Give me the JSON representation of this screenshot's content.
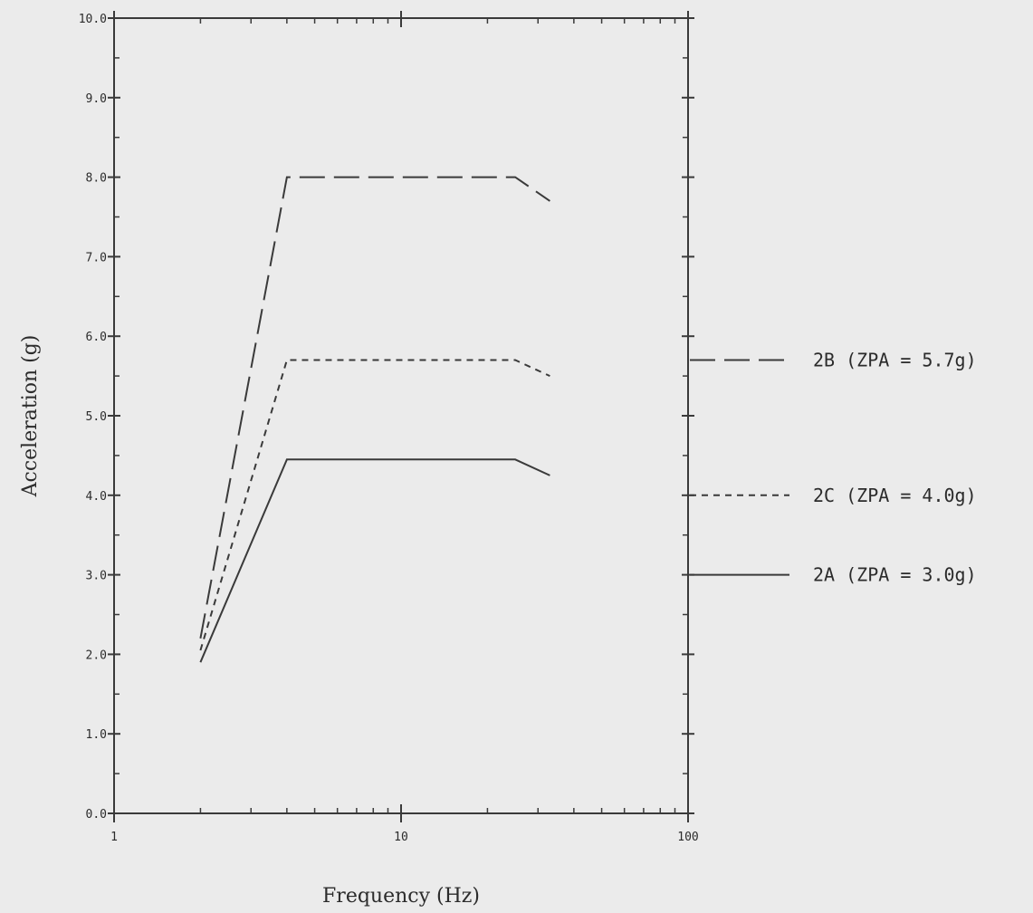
{
  "chart_data": {
    "type": "line",
    "xlabel": "Frequency (Hz)",
    "ylabel": "Acceleration (g)",
    "x_scale": "log",
    "xlim": [
      1,
      100
    ],
    "ylim": [
      0,
      10
    ],
    "x_ticks": [
      {
        "value": 1,
        "label": "1"
      },
      {
        "value": 10,
        "label": "10"
      },
      {
        "value": 100,
        "label": "100"
      }
    ],
    "y_ticks": [
      {
        "value": 0,
        "label": "0.0"
      },
      {
        "value": 1,
        "label": "1.0"
      },
      {
        "value": 2,
        "label": "2.0"
      },
      {
        "value": 3,
        "label": "3.0"
      },
      {
        "value": 4,
        "label": "4.0"
      },
      {
        "value": 5,
        "label": "5.0"
      },
      {
        "value": 6,
        "label": "6.0"
      },
      {
        "value": 7,
        "label": "7.0"
      },
      {
        "value": 8,
        "label": "8.0"
      },
      {
        "value": 9,
        "label": "9.0"
      },
      {
        "value": 10,
        "label": "10.0"
      }
    ],
    "grid": false,
    "legend_placement": "right",
    "series": [
      {
        "name": "2B (ZPA = 5.7g)",
        "style": "dashed",
        "zpa": 5.7,
        "x": [
          2,
          4,
          25,
          33
        ],
        "y": [
          2.2,
          8.0,
          8.0,
          7.7
        ]
      },
      {
        "name": "2C (ZPA = 4.0g)",
        "style": "dotted",
        "zpa": 4.0,
        "x": [
          2,
          4,
          25,
          33
        ],
        "y": [
          2.05,
          5.7,
          5.7,
          5.5
        ]
      },
      {
        "name": "2A (ZPA = 3.0g)",
        "style": "solid",
        "zpa": 3.0,
        "x": [
          2,
          4,
          25,
          33
        ],
        "y": [
          1.9,
          4.45,
          4.45,
          4.25
        ]
      }
    ]
  }
}
